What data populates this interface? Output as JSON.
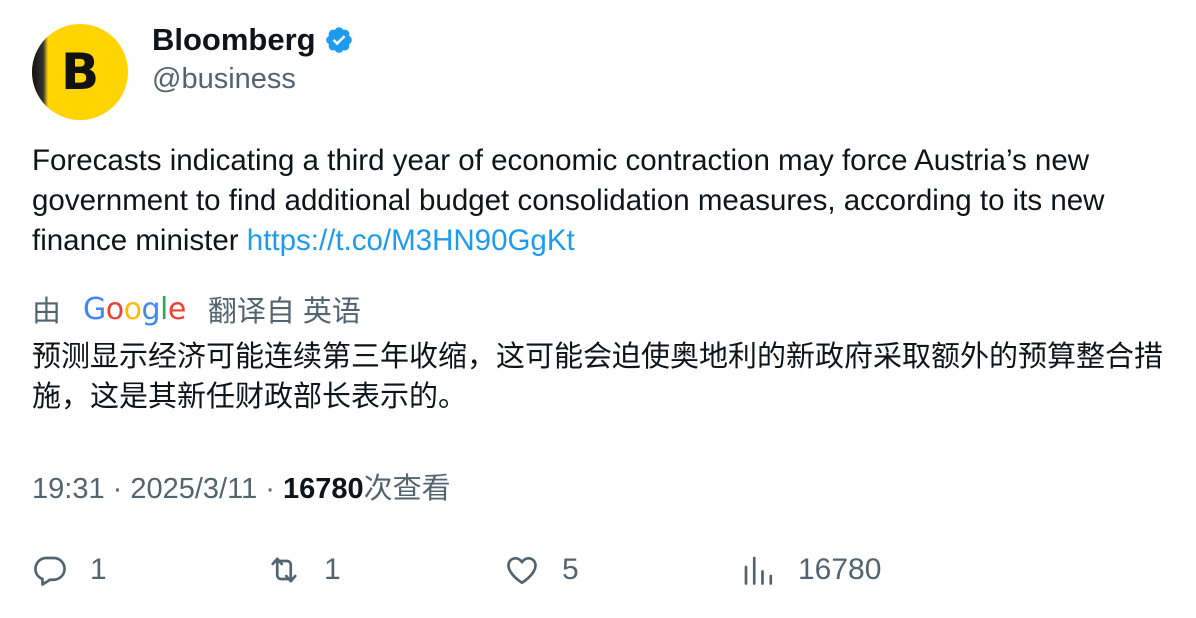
{
  "author": {
    "display_name": "Bloomberg",
    "handle": "@business",
    "avatar_letter": "B",
    "verified": true,
    "verified_color": "#1d9bf0",
    "avatar_color": "#ffd400"
  },
  "tweet": {
    "text": "Forecasts indicating a third year of economic contraction may force Austria’s new government to find additional budget consolidation measures, according to its new finance minister ",
    "link": "https://t.co/M3HN90GgKt",
    "link_color": "#1d9bf0"
  },
  "translation": {
    "prefix": "由",
    "provider": "Google",
    "suffix": "翻译自 英语",
    "text": "预测显示经济可能连续第三年收缩，这可能会迫使奥地利的新政府采取额外的预算整合措施，这是其新任财政部长表示的。"
  },
  "meta": {
    "time": "19:31",
    "separator": "·",
    "date": "2025/3/11",
    "views": "16780",
    "views_label": "次查看"
  },
  "actions": {
    "reply": {
      "icon": "reply-icon",
      "count": "1"
    },
    "retweet": {
      "icon": "retweet-icon",
      "count": "1"
    },
    "like": {
      "icon": "heart-icon",
      "count": "5"
    },
    "views": {
      "icon": "analytics-icon",
      "count": "16780"
    }
  }
}
